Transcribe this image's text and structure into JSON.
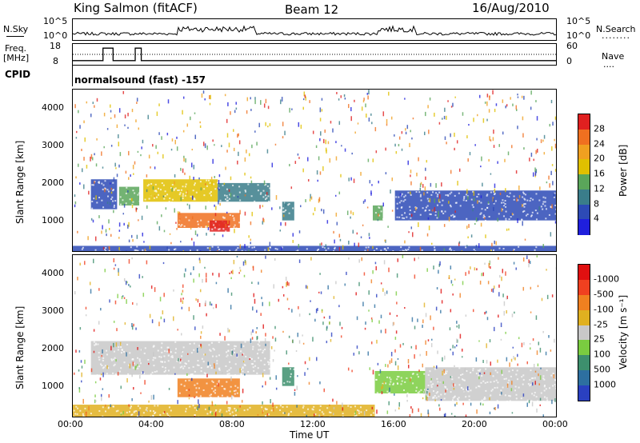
{
  "header": {
    "station": "King Salmon (fitACF)",
    "beam": "Beam 12",
    "date": "16/Aug/2010"
  },
  "side_labels": {
    "nsky": "N.Sky",
    "nsearch": "N.Search",
    "freq": "Freq.",
    "freq_unit": "[MHz]",
    "nave": "Nave",
    "cpid": "CPID",
    "dots_nsearch": "........",
    "dots_nave": "...."
  },
  "small_axes": {
    "noise_left_top": "10^5",
    "noise_left_bot": "10^0",
    "noise_right_top": "10^5",
    "noise_right_bot": "10^0",
    "freq_left_top": "18",
    "freq_left_bot": "8",
    "nave_right_top": "60",
    "nave_right_bot": "0"
  },
  "cpid_text": "normalsound (fast) -157",
  "chart_data": [
    {
      "type": "heatmap",
      "panel": "power",
      "ylabel": "Slant Range [km]",
      "yticks": [
        "1000",
        "2000",
        "3000",
        "4000"
      ],
      "ylim": [
        180,
        4500
      ],
      "xticks": [
        "00:00",
        "04:00",
        "08:00",
        "12:00",
        "16:00",
        "20:00",
        "00:00"
      ],
      "xlim": [
        0,
        24
      ],
      "colorbar": {
        "label": "Power [dB]",
        "ticks": [
          "4",
          "8",
          "12",
          "16",
          "20",
          "24",
          "28"
        ],
        "colors": [
          "#1f1fdd",
          "#2d4ab6",
          "#3a7d8a",
          "#5aa65a",
          "#e0c000",
          "#f0a020",
          "#f07020",
          "#e02020"
        ]
      },
      "regions": [
        {
          "t0": 0.9,
          "t1": 2.2,
          "r0": 1300,
          "r1": 2100,
          "color": "#2d4ab6"
        },
        {
          "t0": 2.3,
          "t1": 3.3,
          "r0": 1400,
          "r1": 1900,
          "color": "#5aa65a"
        },
        {
          "t0": 3.5,
          "t1": 7.2,
          "r0": 1500,
          "r1": 2100,
          "color": "#e0c000"
        },
        {
          "t0": 7.2,
          "t1": 9.8,
          "r0": 1500,
          "r1": 2000,
          "color": "#3a7d8a"
        },
        {
          "t0": 5.2,
          "t1": 8.3,
          "r0": 800,
          "r1": 1200,
          "color": "#f07020"
        },
        {
          "t0": 6.8,
          "t1": 7.8,
          "r0": 700,
          "r1": 1000,
          "color": "#e02020"
        },
        {
          "t0": 10.4,
          "t1": 11.0,
          "r0": 1000,
          "r1": 1500,
          "color": "#3a7d8a"
        },
        {
          "t0": 14.9,
          "t1": 15.4,
          "r0": 1000,
          "r1": 1400,
          "color": "#5aa65a"
        },
        {
          "t0": 16.0,
          "t1": 24.0,
          "r0": 1000,
          "r1": 1800,
          "color": "#2d4ab6"
        },
        {
          "t0": 0.0,
          "t1": 24.0,
          "r0": 180,
          "r1": 320,
          "color": "#2d4ab6"
        }
      ]
    },
    {
      "type": "heatmap",
      "panel": "velocity",
      "ylabel": "Slant Range [km]",
      "yticks": [
        "1000",
        "2000",
        "3000",
        "4000"
      ],
      "ylim": [
        180,
        4500
      ],
      "xticks": [
        "00:00",
        "04:00",
        "08:00",
        "12:00",
        "16:00",
        "20:00",
        "00:00"
      ],
      "xlim": [
        0,
        24
      ],
      "xlabel": "Time UT",
      "colorbar": {
        "label": "Velocity [m s⁻¹]",
        "ticks": [
          "1000",
          "500",
          "100",
          "25",
          "-25",
          "-100",
          "-500",
          "-1000"
        ],
        "colors": [
          "#2a40c0",
          "#2d6fa0",
          "#3d8f6d",
          "#7acc40",
          "#c8c8c8",
          "#e0b020",
          "#f08020",
          "#f04020",
          "#e01010"
        ]
      },
      "regions": [
        {
          "t0": 0.9,
          "t1": 9.8,
          "r0": 1300,
          "r1": 2200,
          "color": "#c8c8c8"
        },
        {
          "t0": 5.2,
          "t1": 8.3,
          "r0": 700,
          "r1": 1200,
          "color": "#f08020"
        },
        {
          "t0": 10.4,
          "t1": 11.0,
          "r0": 1000,
          "r1": 1500,
          "color": "#3d8f6d"
        },
        {
          "t0": 15.0,
          "t1": 17.5,
          "r0": 800,
          "r1": 1400,
          "color": "#7acc40"
        },
        {
          "t0": 17.5,
          "t1": 24.0,
          "r0": 600,
          "r1": 1500,
          "color": "#c8c8c8"
        },
        {
          "t0": 0.0,
          "t1": 15.0,
          "r0": 180,
          "r1": 500,
          "color": "#e0b020"
        }
      ]
    }
  ],
  "freq_trace": {
    "baseline_mhz": 10,
    "high_mhz": 16,
    "pulses": [
      [
        1.5,
        2.0
      ],
      [
        3.1,
        3.4
      ]
    ]
  }
}
